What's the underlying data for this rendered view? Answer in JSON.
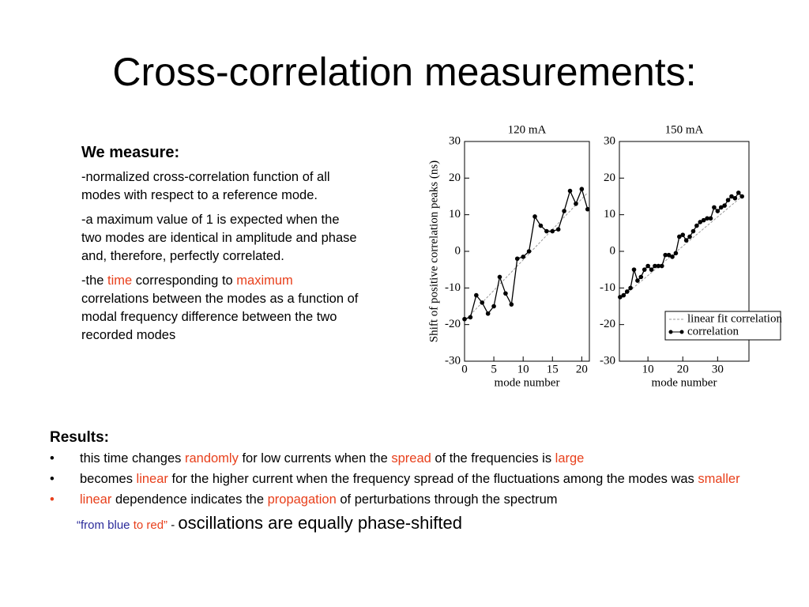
{
  "title": "Cross-correlation measurements:",
  "measure": {
    "heading": "We measure:",
    "paragraphs": [
      [
        {
          "text": "-normalized cross-correlation function of all modes with respect to a reference mode."
        }
      ],
      [
        {
          "text": "-a maximum value of 1 is expected when the two modes are identical in amplitude and phase and, therefore, perfectly correlated."
        }
      ],
      [
        {
          "text": "-the "
        },
        {
          "text": "time",
          "color": "#e8401c"
        },
        {
          "text": " corresponding to "
        },
        {
          "text": "maximum",
          "color": "#e8401c"
        },
        {
          "text": " correlations between the modes as a function of modal frequency difference between the two recorded modes"
        }
      ]
    ]
  },
  "results": {
    "heading": "Results:",
    "bullets": [
      {
        "bullet": "•",
        "runs": [
          {
            "text": "this time changes "
          },
          {
            "text": "randomly",
            "color": "#e8401c"
          },
          {
            "text": " for low currents when the "
          },
          {
            "text": "spread",
            "color": "#e8401c"
          },
          {
            "text": " of the frequencies is "
          },
          {
            "text": "large",
            "color": "#e8401c"
          }
        ]
      },
      {
        "bullet": "•",
        "runs": [
          {
            "text": "becomes "
          },
          {
            "text": "linear",
            "color": "#e8401c"
          },
          {
            "text": " for the higher current when the frequency spread of the fluctuations among the modes was "
          },
          {
            "text": "smaller",
            "color": "#e8401c"
          }
        ]
      },
      {
        "bullet": "•",
        "bullet_color": "#e8401c",
        "runs": [
          {
            "text": "linear",
            "color": "#e8401c"
          },
          {
            "text": " dependence indicates the "
          },
          {
            "text": "propagation",
            "color": "#e8401c"
          },
          {
            "text": " of perturbations through the spectrum"
          }
        ]
      }
    ],
    "closing": [
      {
        "text": "“from blue",
        "color": "#2b2b9a"
      },
      {
        "text": " to red”",
        "color": "#e8401c"
      },
      {
        "text": " - "
      },
      {
        "text": "oscillations are equally phase-shifted",
        "size": "large"
      }
    ]
  },
  "chart_data": [
    {
      "type": "line",
      "title": "120 mA",
      "xlabel": "mode number",
      "ylabel": "Shift of positive correlation peaks (ns)",
      "xlim": [
        0,
        21.3
      ],
      "ylim": [
        -30,
        30
      ],
      "xticks": [
        0,
        5,
        10,
        15,
        20
      ],
      "yticks": [
        -30,
        -20,
        -10,
        0,
        10,
        20,
        30
      ],
      "series": [
        {
          "color": "#999999",
          "style": "dashed",
          "x": [
            0,
            21
          ],
          "values": [
            -19,
            16
          ]
        },
        {
          "color": "#000000",
          "style": "solid",
          "markers": true,
          "x": [
            0,
            1,
            2,
            3,
            4,
            5,
            6,
            7,
            8,
            9,
            10,
            11,
            12,
            13,
            14,
            15,
            16,
            17,
            18,
            19,
            20,
            21
          ],
          "values": [
            -18.5,
            -18,
            -12,
            -14,
            -17,
            -15,
            -7,
            -11.5,
            -14.5,
            -2,
            -1.5,
            0,
            9.5,
            7,
            5.5,
            5.5,
            6,
            11,
            16.5,
            13,
            17,
            11.5
          ]
        }
      ]
    },
    {
      "type": "line",
      "title": "150 mA",
      "xlabel": "mode number",
      "xlim": [
        1.8,
        39
      ],
      "ylim": [
        -30,
        30
      ],
      "xticks": [
        10,
        20,
        30
      ],
      "yticks": [
        -30,
        -20,
        -10,
        0,
        10,
        20,
        30
      ],
      "legend": "lower right",
      "series": [
        {
          "name": "linear fit correlation",
          "color": "#999999",
          "style": "dashed",
          "x": [
            2,
            37
          ],
          "values": [
            -13,
            15
          ]
        },
        {
          "name": "correlation",
          "color": "#000000",
          "style": "solid",
          "markers": true,
          "x": [
            2,
            3,
            4,
            5,
            6,
            7,
            8,
            9,
            10,
            11,
            12,
            13,
            14,
            15,
            16,
            17,
            18,
            19,
            20,
            21,
            22,
            23,
            24,
            25,
            26,
            27,
            28,
            29,
            30,
            31,
            32,
            33,
            34,
            35,
            36,
            37
          ],
          "values": [
            -12.5,
            -12,
            -11,
            -10,
            -5,
            -8,
            -7,
            -5,
            -4,
            -5,
            -4,
            -4,
            -4,
            -1,
            -1,
            -1.5,
            -0.5,
            4,
            4.5,
            3,
            4,
            5.5,
            7,
            8,
            8.5,
            9,
            9,
            12,
            11,
            12,
            12.5,
            14,
            15,
            14.5,
            16,
            15
          ]
        }
      ]
    }
  ]
}
